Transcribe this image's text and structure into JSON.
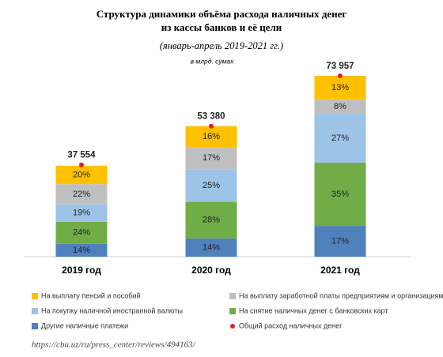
{
  "chart_data": {
    "type": "stacked_bar",
    "title": [
      "Структура динамики объёма расхода наличных денег",
      "из кассы банков и её цели"
    ],
    "subtitle": "(январь-апрель 2019-2021 гг.)",
    "unit_note": "в млрд. сумах",
    "source": "https://cbu.uz/ru/press_center/reviews/494163/",
    "categories": [
      "2019 год",
      "2020 год",
      "2021 год"
    ],
    "series": [
      {
        "name": "Другие наличные платежи",
        "color": "#4f81bd",
        "values": [
          14,
          14,
          17
        ],
        "value_labels": [
          "14%",
          "14%",
          "17%"
        ]
      },
      {
        "name": "На снятие наличных денег с банковских карт",
        "color": "#70ad47",
        "values": [
          24,
          28,
          35
        ],
        "value_labels": [
          "24%",
          "28%",
          "35%"
        ]
      },
      {
        "name": "На покупку наличной иностранной валюты",
        "color": "#9dc3e6",
        "values": [
          19,
          25,
          27
        ],
        "value_labels": [
          "19%",
          "25%",
          "27%"
        ]
      },
      {
        "name": "На выплату заработной платы предприятиям и организациям",
        "color": "#bfbfbf",
        "values": [
          22,
          17,
          8
        ],
        "value_labels": [
          "22%",
          "17%",
          "8%"
        ]
      },
      {
        "name": "На выплату пенсий и пособий",
        "color": "#ffc000",
        "values": [
          20,
          16,
          13
        ],
        "value_labels": [
          "20%",
          "16%",
          "13%"
        ]
      }
    ],
    "totals": {
      "name": "Общий расход наличных денег",
      "color": "#e02020",
      "values": [
        37554,
        53380,
        73957
      ],
      "value_labels": [
        "37 554",
        "53 380",
        "73 957"
      ]
    }
  }
}
